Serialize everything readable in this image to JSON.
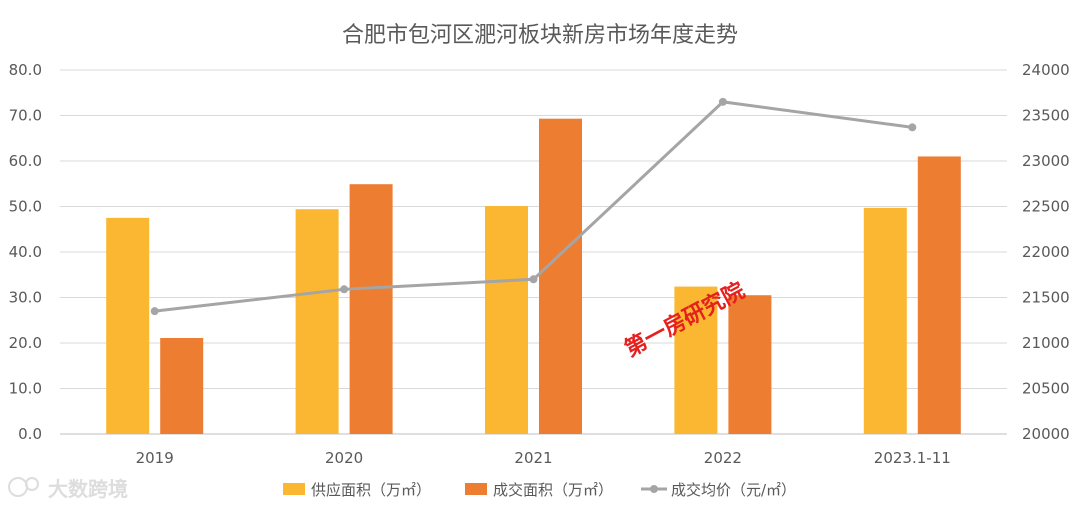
{
  "chart_data": {
    "type": "bar+line",
    "title": "合肥市包河区淝河板块新房市场年度走势",
    "categories": [
      "2019",
      "2020",
      "2021",
      "2022",
      "2023.1-11"
    ],
    "series": [
      {
        "name": "供应面积（万㎡）",
        "type": "bar",
        "axis": "left",
        "color": "#FBB731",
        "values": [
          47.5,
          49.4,
          50.1,
          32.4,
          49.7
        ]
      },
      {
        "name": "成交面积（万㎡）",
        "type": "bar",
        "axis": "left",
        "color": "#ED7D31",
        "values": [
          21.1,
          54.9,
          69.3,
          30.5,
          61.0
        ]
      },
      {
        "name": "成交均价（元/㎡）",
        "type": "line",
        "axis": "right",
        "color": "#A5A5A5",
        "values": [
          21350,
          21590,
          21700,
          23650,
          23370
        ]
      }
    ],
    "y_left": {
      "range": [
        0,
        80
      ],
      "ticks": [
        "0.0",
        "10.0",
        "20.0",
        "30.0",
        "40.0",
        "50.0",
        "60.0",
        "70.0",
        "80.0"
      ]
    },
    "y_right": {
      "range": [
        20000,
        24000
      ],
      "ticks": [
        "20000",
        "20500",
        "21000",
        "21500",
        "22000",
        "22500",
        "23000",
        "23500",
        "24000"
      ]
    },
    "grid": true,
    "legend_position": "bottom"
  },
  "watermark": "第一房研究院",
  "logo": {
    "text": "大数跨境"
  },
  "colors": {
    "grid": "#d9d9d9",
    "axis": "#bfbfbf",
    "text": "#595959",
    "watermark": "#e5201f"
  }
}
